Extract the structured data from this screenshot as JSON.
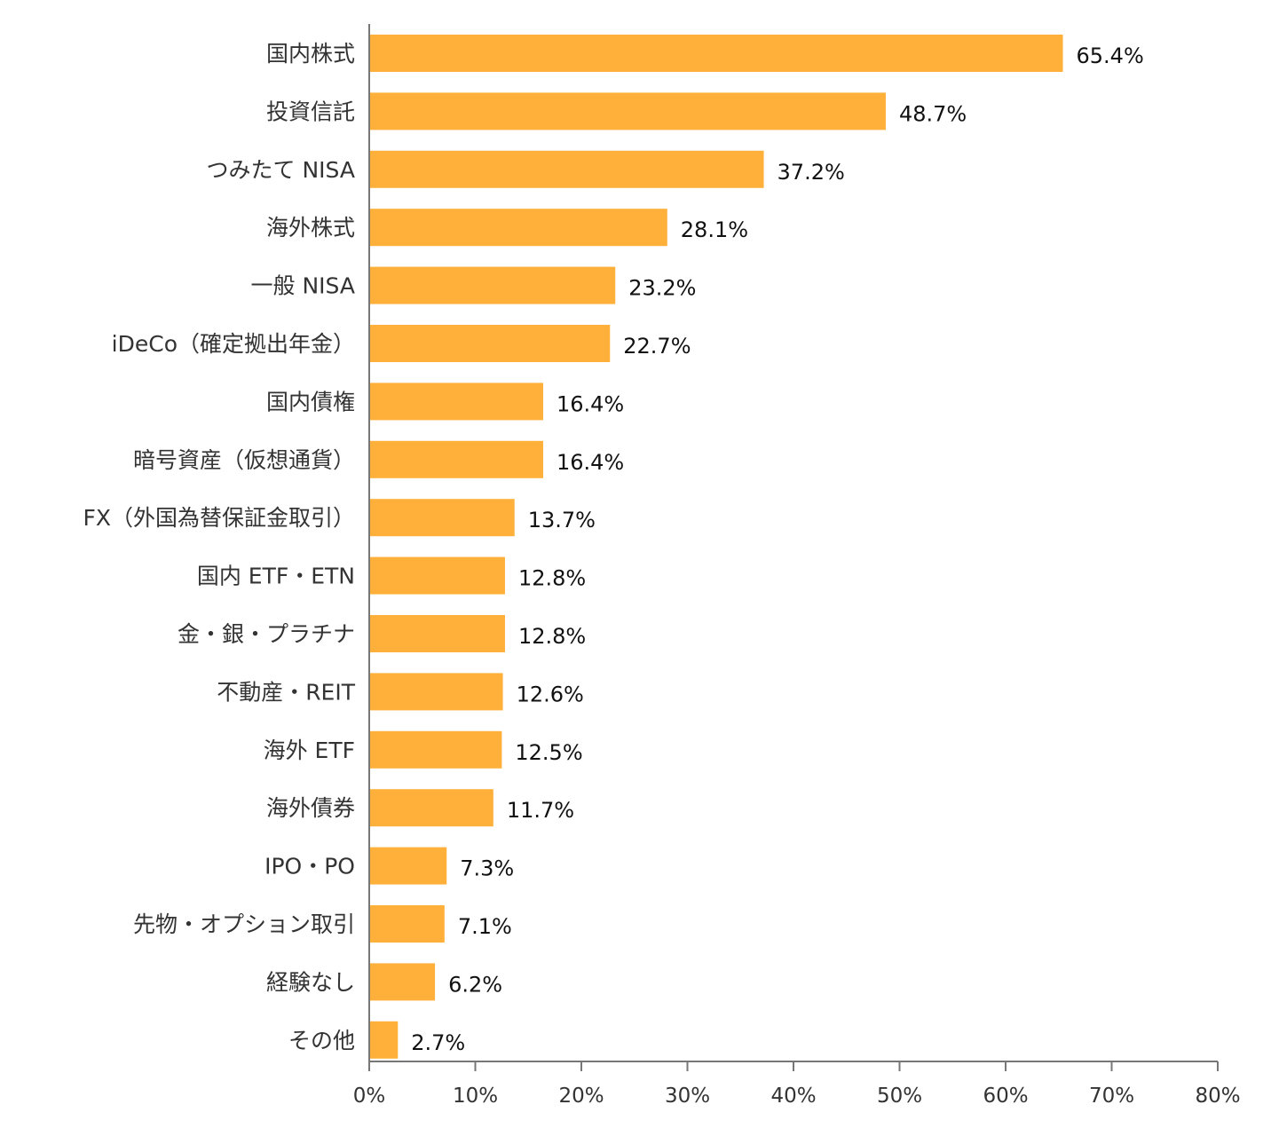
{
  "colors": {
    "bar": "#FFB03B",
    "axis": "#777777",
    "text": "#333333"
  },
  "chart_data": {
    "type": "bar",
    "orientation": "horizontal",
    "categories": [
      "国内株式",
      "投資信託",
      "つみたて NISA",
      "海外株式",
      "一般 NISA",
      "iDeCo（確定拠出年金）",
      "国内債権",
      "暗号資産（仮想通貨）",
      "FX（外国為替保証金取引）",
      "国内 ETF・ETN",
      "金・銀・プラチナ",
      "不動産・REIT",
      "海外 ETF",
      "海外債券",
      "IPO・PO",
      "先物・オプション取引",
      "経験なし",
      "その他"
    ],
    "values": [
      65.4,
      48.7,
      37.2,
      28.1,
      23.2,
      22.7,
      16.4,
      16.4,
      13.7,
      12.8,
      12.8,
      12.6,
      12.5,
      11.7,
      7.3,
      7.1,
      6.2,
      2.7
    ],
    "value_labels": [
      "65.4%",
      "48.7%",
      "37.2%",
      "28.1%",
      "23.2%",
      "22.7%",
      "16.4%",
      "16.4%",
      "13.7%",
      "12.8%",
      "12.8%",
      "12.6%",
      "12.5%",
      "11.7%",
      "7.3%",
      "7.1%",
      "6.2%",
      "2.7%"
    ],
    "xlim": [
      0,
      80
    ],
    "xticks": [
      0,
      10,
      20,
      30,
      40,
      50,
      60,
      70,
      80
    ],
    "xtick_labels": [
      "0%",
      "10%",
      "20%",
      "30%",
      "40%",
      "50%",
      "60%",
      "70%",
      "80%"
    ],
    "grid": false,
    "legend": "none"
  }
}
